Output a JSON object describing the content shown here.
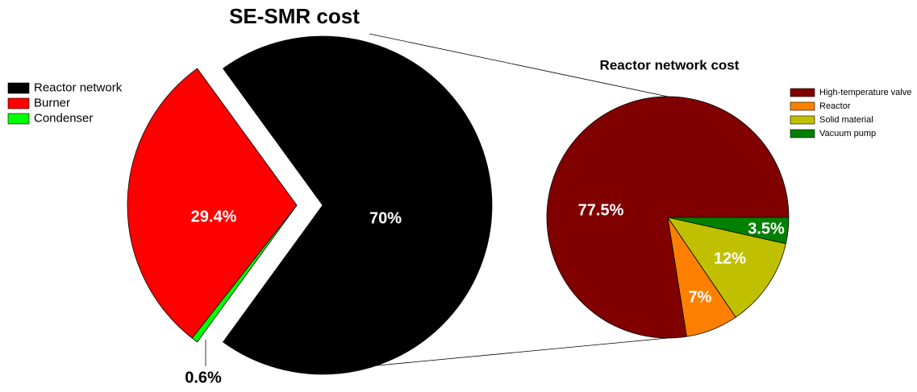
{
  "chart_data": [
    {
      "type": "pie",
      "title": "SE-SMR cost",
      "categories": [
        "Reactor network",
        "Burner",
        "Condenser"
      ],
      "values": [
        70,
        29.4,
        0.6
      ],
      "value_labels": [
        "70%",
        "29.4%",
        "0.6%"
      ],
      "colors": [
        "#000000",
        "#ff0000",
        "#00ff00"
      ],
      "legend": "left"
    },
    {
      "type": "pie",
      "title": "Reactor network cost",
      "categories": [
        "High-temperature valve",
        "Reactor",
        "Solid material",
        "Vacuum pump"
      ],
      "values": [
        77.5,
        7,
        12,
        3.5
      ],
      "value_labels": [
        "77.5%",
        "7%",
        "12%",
        "3.5%"
      ],
      "colors": [
        "#800000",
        "#ff8000",
        "#c0c000",
        "#008000"
      ],
      "legend": "upper right"
    }
  ]
}
